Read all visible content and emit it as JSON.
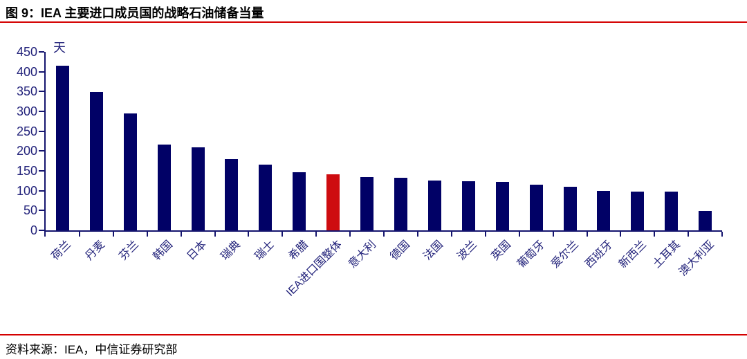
{
  "page": {
    "title": "图 9：IEA 主要进口成员国的战略石油储备当量",
    "source": "资料来源：IEA，中信证券研究部"
  },
  "colors": {
    "background": "#ffffff",
    "text": "#000000",
    "rule_red": "#d40000",
    "bar": "#010166",
    "highlight": "#ce0c10",
    "axis_line": "#14146e",
    "axis_text": "#23237b"
  },
  "chart_data": {
    "type": "bar",
    "title": "图 9：IEA 主要进口成员国的战略石油储备当量",
    "unit_label": "天",
    "xlabel": "",
    "ylabel": "天",
    "ylim": [
      0,
      450
    ],
    "ytick_step": 50,
    "yticks": [
      0,
      50,
      100,
      150,
      200,
      250,
      300,
      350,
      400,
      450
    ],
    "grid": false,
    "legend": "none",
    "highlight_index": 8,
    "highlight_category": "IEA进口国整体",
    "categories": [
      "荷兰",
      "丹麦",
      "芬兰",
      "韩国",
      "日本",
      "瑞典",
      "瑞士",
      "希腊",
      "IEA进口国整体",
      "意大利",
      "德国",
      "法国",
      "波兰",
      "英国",
      "葡萄牙",
      "爱尔兰",
      "西班牙",
      "新西兰",
      "土耳其",
      "澳大利亚"
    ],
    "values": [
      415,
      348,
      295,
      217,
      210,
      180,
      165,
      147,
      142,
      135,
      133,
      125,
      124,
      122,
      116,
      110,
      99,
      97,
      97,
      49
    ]
  }
}
